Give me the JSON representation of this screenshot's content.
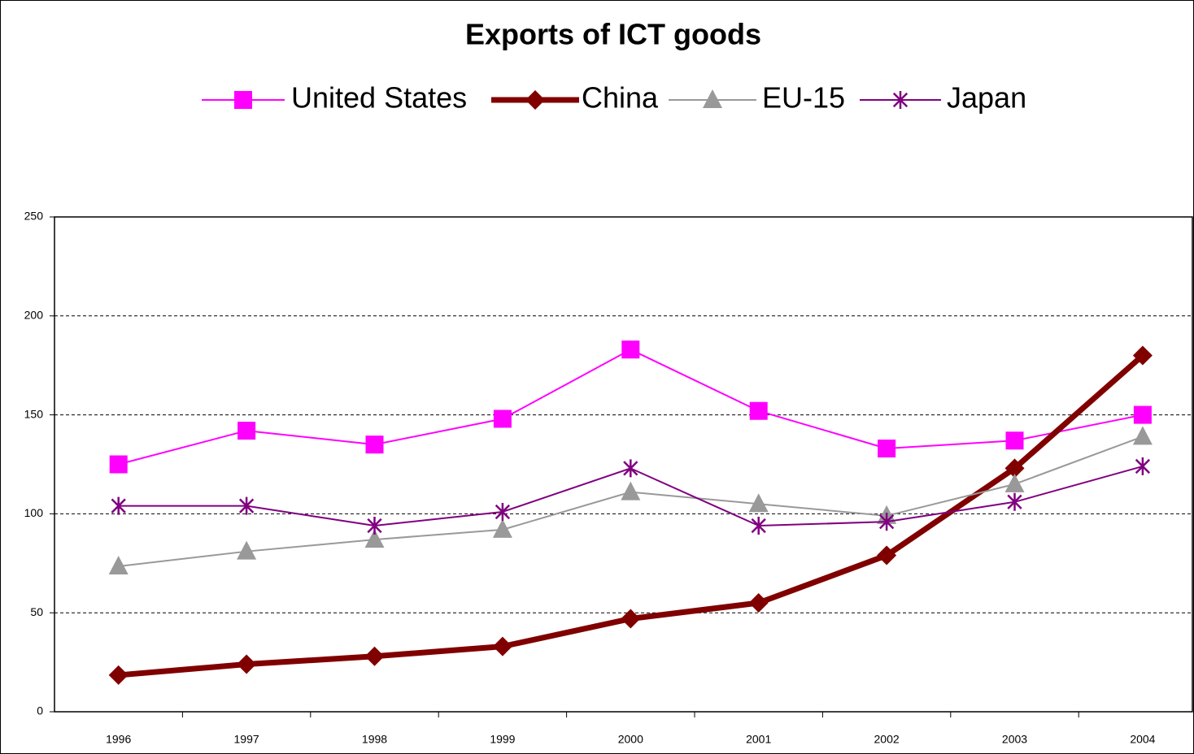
{
  "chart_data": {
    "type": "line",
    "title": "Exports of ICT goods",
    "categories": [
      "1996",
      "1997",
      "1998",
      "1999",
      "2000",
      "2001",
      "2002",
      "2003",
      "2004"
    ],
    "series": [
      {
        "name": "United States",
        "color": "#ff00ff",
        "marker": "square",
        "line_width": 2,
        "values": [
          125,
          142,
          135,
          148,
          183,
          152,
          133,
          137,
          150
        ]
      },
      {
        "name": "China",
        "color": "#800000",
        "marker": "diamond",
        "line_width": 7,
        "values": [
          18.5,
          24,
          28,
          33,
          47,
          55,
          79,
          123,
          180
        ]
      },
      {
        "name": "EU-15",
        "color": "#999999",
        "marker": "triangle",
        "line_width": 2,
        "values": [
          73.5,
          81,
          87,
          92,
          111,
          105,
          99,
          115,
          139
        ]
      },
      {
        "name": "Japan",
        "color": "#800080",
        "marker": "star",
        "line_width": 2,
        "values": [
          104,
          104,
          94,
          101,
          123,
          94,
          96,
          106,
          124
        ]
      }
    ],
    "ylim": [
      0,
      250
    ],
    "yticks": [
      0,
      50,
      100,
      150,
      200,
      250
    ],
    "grid": true,
    "legend": "top"
  }
}
